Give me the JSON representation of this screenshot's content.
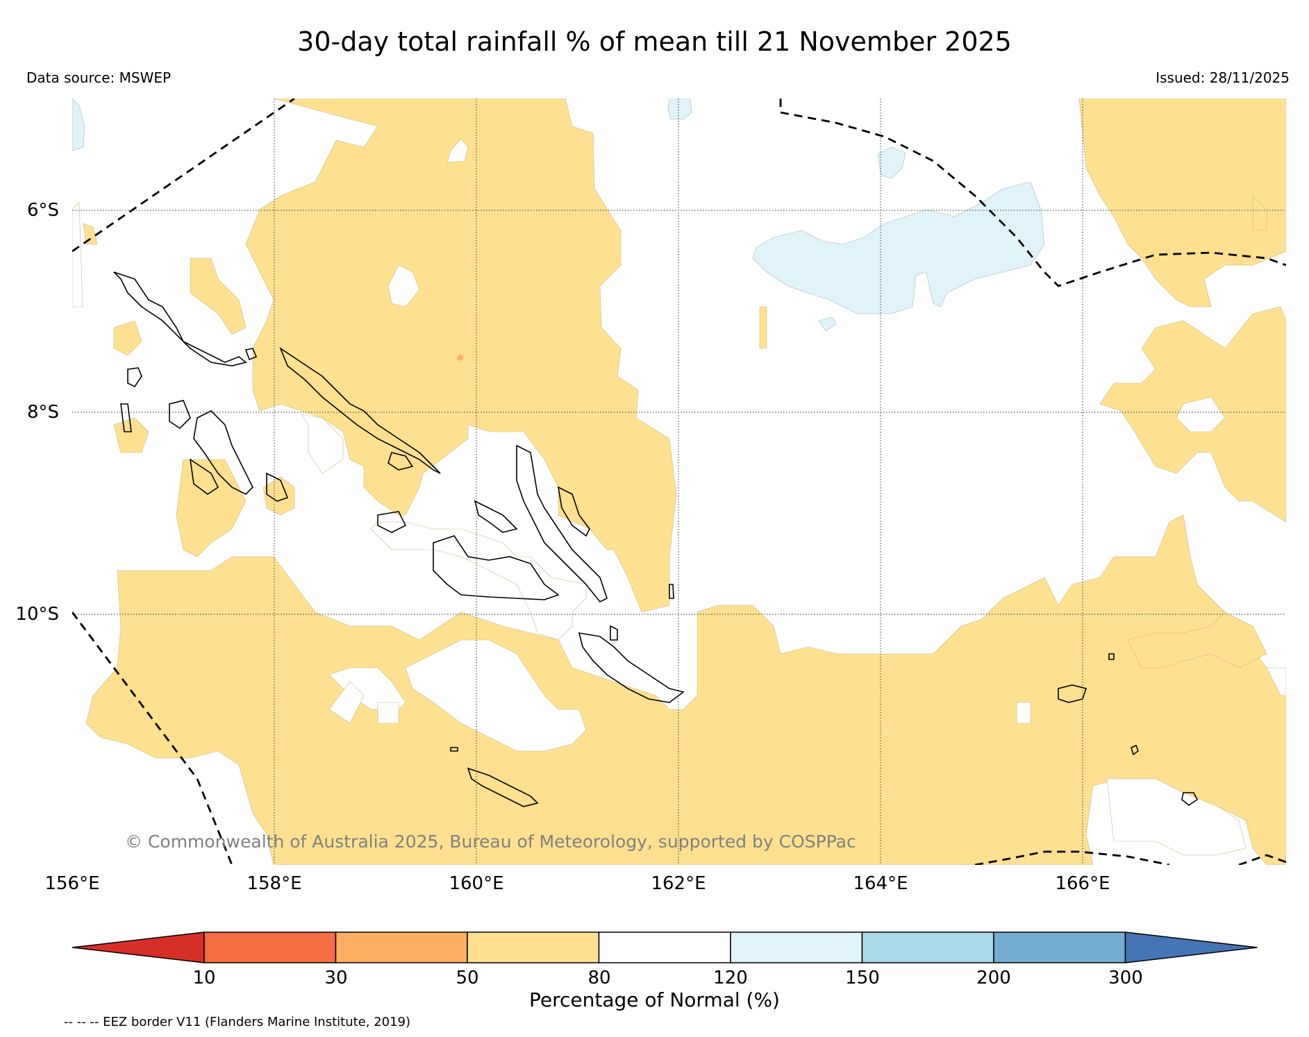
{
  "map": {
    "title": "30-day total rainfall % of mean till 21 November 2025",
    "data_source": "Data source: MSWEP",
    "issued": "Issued: 28/11/2025",
    "copyright": "© Commonwealth of Australia 2025, Bureau of Meteorology, supported by COSPPac",
    "eez_note": "-- -- -- EEZ border V11 (Flanders Marine Institute, 2019)",
    "lat_labels": [
      "6°S",
      "8°S",
      "10°S"
    ],
    "lon_labels": [
      "156°E",
      "158°E",
      "160°E",
      "162°E",
      "164°E",
      "166°E"
    ]
  },
  "colorbar": {
    "title": "Percentage of Normal (%)",
    "ticks": [
      "10",
      "30",
      "50",
      "80",
      "120",
      "150",
      "200",
      "300"
    ],
    "colors": [
      "#d62f27",
      "#f46d43",
      "#fdae61",
      "#fee090",
      "#ffffff",
      "#e0f3f8",
      "#abd9e9",
      "#74add1",
      "#4575b4"
    ]
  }
}
